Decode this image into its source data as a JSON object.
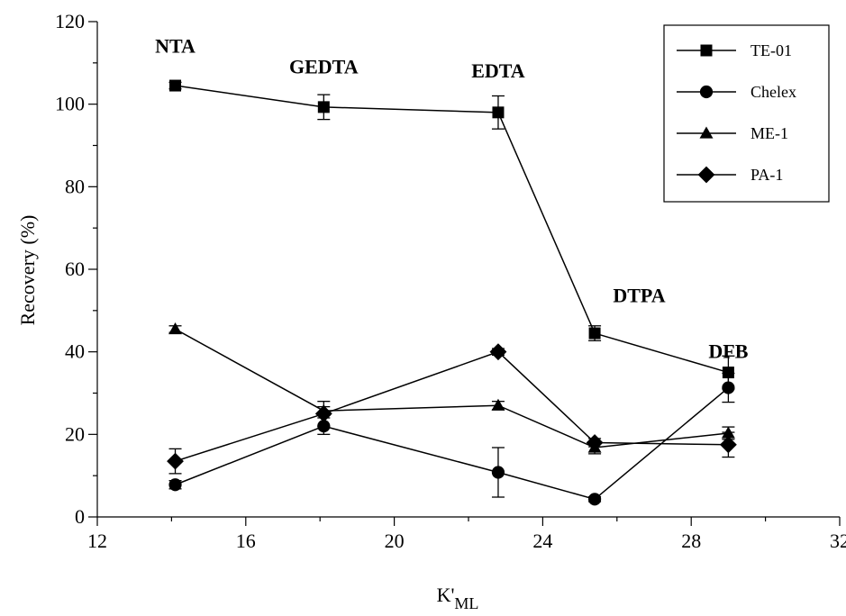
{
  "chart_data": {
    "type": "line",
    "xlabel_main": "K'",
    "xlabel_sub": "ML",
    "ylabel": "Recovery (%)",
    "xlim": [
      12,
      32
    ],
    "ylim": [
      0,
      120
    ],
    "xticks": [
      12,
      16,
      20,
      24,
      28,
      32
    ],
    "yticks": [
      0,
      20,
      40,
      60,
      80,
      100,
      120
    ],
    "grid": false,
    "legend_position": "top-right",
    "series": [
      {
        "name": "TE-01",
        "marker": "square",
        "x": [
          14.1,
          18.1,
          22.8,
          25.4,
          29.0
        ],
        "y": [
          104.5,
          99.3,
          98.0,
          44.5,
          35.0
        ],
        "err": [
          0.8,
          3.0,
          4.0,
          1.8,
          4.0
        ]
      },
      {
        "name": "Chelex",
        "marker": "circle",
        "x": [
          14.1,
          18.1,
          22.8,
          25.4,
          29.0
        ],
        "y": [
          7.8,
          22.0,
          10.8,
          4.3,
          31.3
        ],
        "err": [
          1.0,
          2.0,
          6.0,
          0.6,
          3.5
        ]
      },
      {
        "name": "ME-1",
        "marker": "triangle",
        "x": [
          14.1,
          18.1,
          22.8,
          25.4,
          29.0
        ],
        "y": [
          45.5,
          25.7,
          27.0,
          16.8,
          20.3
        ],
        "err": [
          0.8,
          1.0,
          1.0,
          1.5,
          1.5
        ]
      },
      {
        "name": "PA-1",
        "marker": "diamond",
        "x": [
          14.1,
          18.1,
          22.8,
          25.4,
          29.0
        ],
        "y": [
          13.5,
          25.0,
          40.0,
          18.0,
          17.5
        ],
        "err": [
          3.0,
          3.0,
          0.8,
          1.0,
          3.0
        ]
      }
    ],
    "annotations": [
      {
        "text": "NTA",
        "x": 14.1,
        "y": 112.5
      },
      {
        "text": "GEDTA",
        "x": 18.1,
        "y": 107.5
      },
      {
        "text": "EDTA",
        "x": 22.8,
        "y": 106.5
      },
      {
        "text": "DTPA",
        "x": 26.6,
        "y": 52.0
      },
      {
        "text": "DFB",
        "x": 29.0,
        "y": 38.5
      }
    ]
  }
}
